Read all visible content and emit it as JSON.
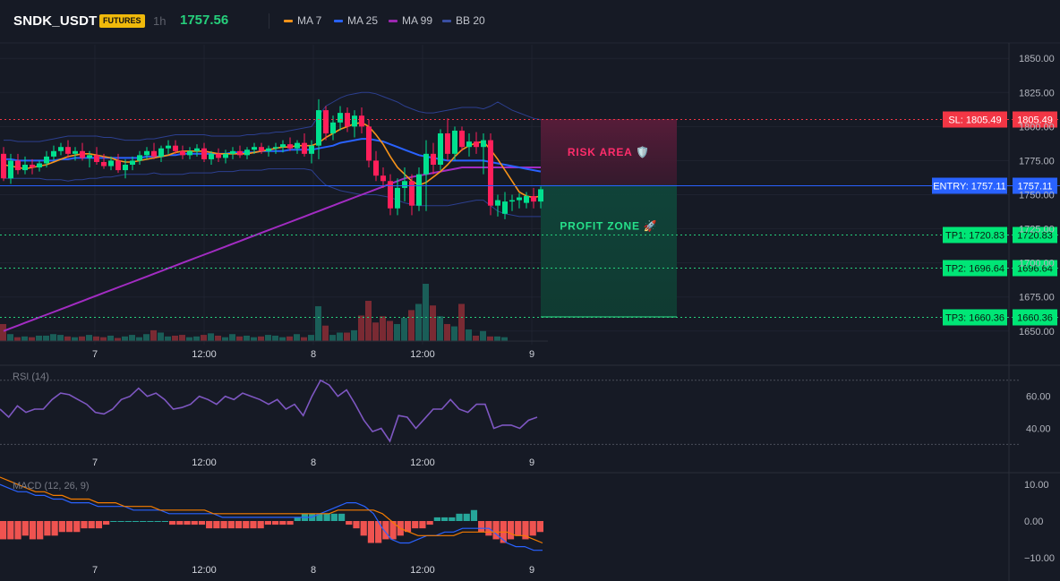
{
  "header": {
    "symbol": "SNDK_USDT",
    "badge": "FUTURES",
    "interval": "1h",
    "last_price": "1757.56",
    "legend": [
      {
        "label": "MA 7",
        "color": "#f7931a"
      },
      {
        "label": "MA 25",
        "color": "#2962ff"
      },
      {
        "label": "MA 99",
        "color": "#9c27b0"
      },
      {
        "label": "BB 20",
        "color": "#3a4fa3"
      }
    ]
  },
  "colors": {
    "up": "#26a69a",
    "down": "#ef5350",
    "bull_candle": "#00e08e",
    "bear_candle": "#ff1f5a",
    "vol_up": "#1a5e58",
    "vol_down": "#7a2a33"
  },
  "chart_data": [
    {
      "name": "price",
      "type": "candlestick",
      "y_ticks": [
        "1850.00",
        "1825.00",
        "1800.00",
        "1775.00",
        "1750.00",
        "1725.00",
        "1700.00",
        "1675.00",
        "1650.00"
      ],
      "x_ticks": [
        "7",
        "12:00",
        "8",
        "12:00",
        "9"
      ],
      "ylim": [
        1640,
        1860
      ],
      "candles": [
        {
          "o": 1780,
          "h": 1785,
          "l": 1760,
          "c": 1762
        },
        {
          "o": 1762,
          "h": 1780,
          "l": 1758,
          "c": 1775
        },
        {
          "o": 1775,
          "h": 1780,
          "l": 1765,
          "c": 1768
        },
        {
          "o": 1768,
          "h": 1778,
          "l": 1765,
          "c": 1772
        },
        {
          "o": 1772,
          "h": 1776,
          "l": 1765,
          "c": 1770
        },
        {
          "o": 1770,
          "h": 1775,
          "l": 1767,
          "c": 1773
        },
        {
          "o": 1773,
          "h": 1782,
          "l": 1770,
          "c": 1778
        },
        {
          "o": 1778,
          "h": 1786,
          "l": 1775,
          "c": 1782
        },
        {
          "o": 1782,
          "h": 1788,
          "l": 1779,
          "c": 1785
        },
        {
          "o": 1785,
          "h": 1790,
          "l": 1777,
          "c": 1780
        },
        {
          "o": 1780,
          "h": 1785,
          "l": 1775,
          "c": 1782
        },
        {
          "o": 1782,
          "h": 1788,
          "l": 1775,
          "c": 1777
        },
        {
          "o": 1777,
          "h": 1782,
          "l": 1770,
          "c": 1779
        },
        {
          "o": 1779,
          "h": 1785,
          "l": 1772,
          "c": 1774
        },
        {
          "o": 1774,
          "h": 1780,
          "l": 1769,
          "c": 1771
        },
        {
          "o": 1771,
          "h": 1778,
          "l": 1768,
          "c": 1775
        },
        {
          "o": 1775,
          "h": 1780,
          "l": 1766,
          "c": 1768
        },
        {
          "o": 1768,
          "h": 1776,
          "l": 1762,
          "c": 1772
        },
        {
          "o": 1772,
          "h": 1778,
          "l": 1768,
          "c": 1775
        },
        {
          "o": 1775,
          "h": 1782,
          "l": 1772,
          "c": 1779
        },
        {
          "o": 1779,
          "h": 1785,
          "l": 1776,
          "c": 1782
        },
        {
          "o": 1782,
          "h": 1788,
          "l": 1776,
          "c": 1778
        },
        {
          "o": 1778,
          "h": 1786,
          "l": 1774,
          "c": 1784
        },
        {
          "o": 1784,
          "h": 1790,
          "l": 1780,
          "c": 1786
        },
        {
          "o": 1786,
          "h": 1790,
          "l": 1780,
          "c": 1782
        },
        {
          "o": 1782,
          "h": 1786,
          "l": 1776,
          "c": 1779
        },
        {
          "o": 1779,
          "h": 1785,
          "l": 1776,
          "c": 1782
        },
        {
          "o": 1782,
          "h": 1787,
          "l": 1778,
          "c": 1784
        },
        {
          "o": 1784,
          "h": 1788,
          "l": 1774,
          "c": 1776
        },
        {
          "o": 1776,
          "h": 1782,
          "l": 1772,
          "c": 1780
        },
        {
          "o": 1780,
          "h": 1784,
          "l": 1774,
          "c": 1777
        },
        {
          "o": 1777,
          "h": 1783,
          "l": 1773,
          "c": 1780
        },
        {
          "o": 1780,
          "h": 1785,
          "l": 1776,
          "c": 1782
        },
        {
          "o": 1782,
          "h": 1786,
          "l": 1777,
          "c": 1779
        },
        {
          "o": 1779,
          "h": 1785,
          "l": 1776,
          "c": 1783
        },
        {
          "o": 1783,
          "h": 1788,
          "l": 1780,
          "c": 1785
        },
        {
          "o": 1785,
          "h": 1788,
          "l": 1780,
          "c": 1782
        },
        {
          "o": 1782,
          "h": 1786,
          "l": 1778,
          "c": 1784
        },
        {
          "o": 1784,
          "h": 1788,
          "l": 1780,
          "c": 1785
        },
        {
          "o": 1785,
          "h": 1790,
          "l": 1781,
          "c": 1787
        },
        {
          "o": 1787,
          "h": 1792,
          "l": 1782,
          "c": 1784
        },
        {
          "o": 1784,
          "h": 1790,
          "l": 1780,
          "c": 1788
        },
        {
          "o": 1788,
          "h": 1795,
          "l": 1778,
          "c": 1780
        },
        {
          "o": 1780,
          "h": 1790,
          "l": 1773,
          "c": 1786
        },
        {
          "o": 1786,
          "h": 1820,
          "l": 1776,
          "c": 1812
        },
        {
          "o": 1812,
          "h": 1815,
          "l": 1790,
          "c": 1795
        },
        {
          "o": 1795,
          "h": 1808,
          "l": 1790,
          "c": 1803
        },
        {
          "o": 1803,
          "h": 1815,
          "l": 1797,
          "c": 1810
        },
        {
          "o": 1810,
          "h": 1814,
          "l": 1796,
          "c": 1800
        },
        {
          "o": 1800,
          "h": 1812,
          "l": 1792,
          "c": 1808
        },
        {
          "o": 1808,
          "h": 1814,
          "l": 1795,
          "c": 1800
        },
        {
          "o": 1800,
          "h": 1805,
          "l": 1770,
          "c": 1775
        },
        {
          "o": 1775,
          "h": 1782,
          "l": 1760,
          "c": 1764
        },
        {
          "o": 1764,
          "h": 1770,
          "l": 1755,
          "c": 1760
        },
        {
          "o": 1760,
          "h": 1765,
          "l": 1735,
          "c": 1740
        },
        {
          "o": 1740,
          "h": 1762,
          "l": 1735,
          "c": 1755
        },
        {
          "o": 1755,
          "h": 1770,
          "l": 1745,
          "c": 1760
        },
        {
          "o": 1760,
          "h": 1765,
          "l": 1735,
          "c": 1742
        },
        {
          "o": 1742,
          "h": 1770,
          "l": 1738,
          "c": 1765
        },
        {
          "o": 1765,
          "h": 1790,
          "l": 1738,
          "c": 1780
        },
        {
          "o": 1780,
          "h": 1788,
          "l": 1765,
          "c": 1772
        },
        {
          "o": 1772,
          "h": 1798,
          "l": 1768,
          "c": 1795
        },
        {
          "o": 1795,
          "h": 1806,
          "l": 1775,
          "c": 1780
        },
        {
          "o": 1780,
          "h": 1800,
          "l": 1775,
          "c": 1797
        },
        {
          "o": 1797,
          "h": 1800,
          "l": 1782,
          "c": 1785
        },
        {
          "o": 1785,
          "h": 1795,
          "l": 1778,
          "c": 1789
        },
        {
          "o": 1789,
          "h": 1796,
          "l": 1780,
          "c": 1785
        },
        {
          "o": 1785,
          "h": 1795,
          "l": 1765,
          "c": 1790
        },
        {
          "o": 1790,
          "h": 1795,
          "l": 1735,
          "c": 1742
        },
        {
          "o": 1742,
          "h": 1750,
          "l": 1734,
          "c": 1746
        },
        {
          "o": 1736,
          "h": 1752,
          "l": 1732,
          "c": 1745
        },
        {
          "o": 1745,
          "h": 1750,
          "l": 1738,
          "c": 1746
        },
        {
          "o": 1746,
          "h": 1751,
          "l": 1740,
          "c": 1748
        },
        {
          "o": 1744,
          "h": 1752,
          "l": 1740,
          "c": 1749
        },
        {
          "o": 1749,
          "h": 1755,
          "l": 1740,
          "c": 1745
        },
        {
          "o": 1745,
          "h": 1756,
          "l": 1740,
          "c": 1754
        }
      ],
      "ma7": [
        1772,
        1771,
        1770,
        1769,
        1770,
        1771,
        1772,
        1774,
        1776,
        1778,
        1779,
        1780,
        1780,
        1779,
        1778,
        1777,
        1775,
        1774,
        1774,
        1775,
        1776,
        1777,
        1778,
        1779,
        1781,
        1782,
        1782,
        1782,
        1782,
        1781,
        1780,
        1780,
        1780,
        1780,
        1780,
        1781,
        1782,
        1783,
        1784,
        1785,
        1785,
        1786,
        1786,
        1786,
        1788,
        1792,
        1795,
        1798,
        1800,
        1802,
        1803,
        1800,
        1794,
        1787,
        1778,
        1770,
        1765,
        1760,
        1757,
        1759,
        1763,
        1767,
        1772,
        1778,
        1783,
        1786,
        1788,
        1789,
        1783,
        1776,
        1768,
        1760,
        1752,
        1749,
        1748,
        1749
      ],
      "ma25": [
        1776,
        1776,
        1775,
        1775,
        1775,
        1775,
        1775,
        1775,
        1776,
        1776,
        1777,
        1777,
        1777,
        1777,
        1777,
        1777,
        1777,
        1777,
        1777,
        1777,
        1778,
        1778,
        1778,
        1779,
        1779,
        1780,
        1780,
        1780,
        1780,
        1780,
        1780,
        1780,
        1781,
        1781,
        1781,
        1781,
        1782,
        1782,
        1782,
        1782,
        1783,
        1783,
        1783,
        1783,
        1784,
        1785,
        1786,
        1788,
        1789,
        1790,
        1791,
        1791,
        1790,
        1789,
        1787,
        1785,
        1783,
        1781,
        1779,
        1778,
        1777,
        1776,
        1775,
        1775,
        1775,
        1775,
        1775,
        1775,
        1774,
        1773,
        1772,
        1771,
        1770,
        1769,
        1768,
        1767
      ],
      "ma99": [
        1650,
        1652,
        1654,
        1656,
        1658,
        1660,
        1662,
        1664,
        1666,
        1668,
        1670,
        1672,
        1674,
        1676,
        1678,
        1680,
        1682,
        1684,
        1686,
        1688,
        1690,
        1692,
        1694,
        1696,
        1698,
        1700,
        1702,
        1704,
        1706,
        1708,
        1710,
        1712,
        1714,
        1716,
        1718,
        1720,
        1722,
        1724,
        1726,
        1728,
        1730,
        1732,
        1734,
        1736,
        1738,
        1740,
        1742,
        1744,
        1746,
        1748,
        1750,
        1752,
        1754,
        1756,
        1758,
        1760,
        1762,
        1763,
        1764,
        1765,
        1766,
        1767,
        1768,
        1769,
        1770,
        1770,
        1770,
        1770,
        1770,
        1770,
        1770,
        1770,
        1770,
        1770,
        1770,
        1770
      ],
      "bb_upper": [
        1790,
        1790,
        1789,
        1789,
        1789,
        1789,
        1790,
        1791,
        1792,
        1793,
        1793,
        1793,
        1793,
        1793,
        1792,
        1792,
        1791,
        1790,
        1790,
        1790,
        1791,
        1791,
        1792,
        1793,
        1794,
        1794,
        1794,
        1794,
        1794,
        1793,
        1793,
        1793,
        1793,
        1793,
        1794,
        1794,
        1795,
        1795,
        1796,
        1796,
        1797,
        1798,
        1799,
        1800,
        1808,
        1815,
        1818,
        1821,
        1823,
        1824,
        1825,
        1825,
        1824,
        1822,
        1820,
        1818,
        1815,
        1813,
        1811,
        1810,
        1810,
        1811,
        1812,
        1813,
        1814,
        1814,
        1814,
        1813,
        1815,
        1818,
        1815,
        1812,
        1810,
        1808,
        1806,
        1805
      ],
      "bb_lower": [
        1762,
        1762,
        1762,
        1762,
        1762,
        1762,
        1761,
        1761,
        1761,
        1760,
        1761,
        1761,
        1762,
        1762,
        1763,
        1763,
        1764,
        1765,
        1765,
        1765,
        1765,
        1766,
        1765,
        1765,
        1765,
        1765,
        1766,
        1766,
        1766,
        1766,
        1767,
        1767,
        1767,
        1768,
        1768,
        1768,
        1768,
        1769,
        1769,
        1769,
        1769,
        1769,
        1769,
        1768,
        1762,
        1757,
        1755,
        1753,
        1752,
        1751,
        1750,
        1750,
        1750,
        1749,
        1748,
        1746,
        1744,
        1743,
        1742,
        1742,
        1742,
        1742,
        1742,
        1743,
        1744,
        1745,
        1746,
        1746,
        1742,
        1738,
        1736,
        1735,
        1734,
        1734,
        1734,
        1734
      ],
      "volume": [
        22,
        9,
        5,
        6,
        5,
        7,
        7,
        9,
        8,
        6,
        5,
        6,
        8,
        6,
        5,
        7,
        4,
        6,
        8,
        5,
        9,
        14,
        11,
        6,
        7,
        8,
        5,
        6,
        8,
        10,
        7,
        5,
        9,
        6,
        7,
        5,
        6,
        8,
        7,
        5,
        6,
        9,
        5,
        8,
        45,
        20,
        8,
        11,
        11,
        14,
        33,
        52,
        24,
        32,
        26,
        22,
        30,
        40,
        48,
        74,
        46,
        32,
        22,
        19,
        48,
        15,
        7,
        13,
        6,
        6,
        5
      ],
      "trade": {
        "sl": 1805.49,
        "entry": 1757.11,
        "tp1": 1720.83,
        "tp2": 1696.64,
        "tp3": 1660.36,
        "sl_label": "SL: 1805.49",
        "entry_label": "ENTRY: 1757.11",
        "tp1_label": "TP1: 1720.83",
        "tp2_label": "TP2: 1696.64",
        "tp3_label": "TP3: 1660.36",
        "sl_price": "1805.49",
        "entry_price": "1757.11",
        "tp1_price": "1720.83",
        "tp2_price": "1696.64",
        "tp3_price": "1660.36",
        "risk_text": "RISK AREA 🛡️",
        "profit_text": "PROFIT ZONE 🚀"
      }
    },
    {
      "name": "rsi",
      "type": "line",
      "title": "RSI (14)",
      "y_ticks": [
        "60.00",
        "40.00"
      ],
      "ylim": [
        28,
        76
      ],
      "x_ticks": [
        "7",
        "12:00",
        "8",
        "12:00",
        "9"
      ],
      "values": [
        52,
        47,
        54,
        50,
        52,
        52,
        58,
        62,
        61,
        58,
        55,
        50,
        49,
        52,
        58,
        60,
        65,
        60,
        62,
        58,
        52,
        53,
        55,
        60,
        58,
        55,
        60,
        58,
        62,
        60,
        58,
        55,
        58,
        52,
        55,
        48,
        60,
        70,
        67,
        60,
        64,
        55,
        45,
        38,
        40,
        32,
        48,
        47,
        40,
        46,
        52,
        52,
        58,
        52,
        50,
        55,
        55,
        40,
        42,
        42,
        40,
        45,
        47
      ],
      "overbought": 70,
      "oversold": 30,
      "line_color": "#7e57c2"
    },
    {
      "name": "macd",
      "type": "bar",
      "title": "MACD (12, 26, 9)",
      "y_ticks": [
        "10.00",
        "0.00",
        "−10.00"
      ],
      "ylim": [
        -12,
        12
      ],
      "x_ticks": [
        "7",
        "12:00",
        "8",
        "12:00",
        "9"
      ],
      "histogram": [
        -5,
        -5,
        -5,
        -4,
        -5,
        -5,
        -4,
        -4,
        -3,
        -3,
        -3,
        -2,
        -2,
        -2,
        -1,
        0,
        0,
        0,
        0,
        0,
        0,
        0,
        0,
        -1,
        -1,
        -1,
        -1,
        -1,
        -2,
        -2,
        -2,
        -2,
        -2,
        -2,
        -2,
        -2,
        -1,
        -1,
        -1,
        -1,
        1,
        2,
        2,
        2,
        2,
        2,
        2,
        -1,
        -2,
        -4,
        -6,
        -6,
        -5,
        -5,
        -4,
        -3,
        -2,
        -2,
        -1,
        1,
        1,
        1,
        2,
        2,
        3,
        -3,
        -4,
        -5,
        -6,
        -5,
        -4,
        -5,
        -4,
        -3
      ],
      "macd_line": [
        10,
        9,
        8,
        8,
        7,
        7,
        6,
        6,
        5,
        5,
        5,
        4,
        4,
        4,
        4,
        3,
        3,
        3,
        3,
        2,
        2,
        2,
        2,
        2,
        2,
        1,
        1,
        1,
        1,
        1,
        1,
        1,
        1,
        1,
        1,
        1,
        2,
        3,
        4,
        5,
        5,
        4,
        2,
        -2,
        -5,
        -6,
        -6,
        -5,
        -4,
        -4,
        -3,
        -3,
        -2,
        -2,
        -2,
        -2,
        -4,
        -6,
        -7,
        -7,
        -8,
        -8
      ],
      "signal_line": [
        12,
        11,
        10,
        9,
        8,
        8,
        7,
        7,
        6,
        6,
        6,
        5,
        5,
        5,
        4,
        4,
        4,
        4,
        3,
        3,
        3,
        3,
        3,
        3,
        2,
        2,
        2,
        2,
        2,
        2,
        2,
        2,
        2,
        2,
        2,
        2,
        2,
        2,
        3,
        3,
        3,
        3,
        3,
        2,
        0,
        -2,
        -3,
        -4,
        -4,
        -4,
        -4,
        -4,
        -3,
        -3,
        -3,
        -3,
        -3,
        -3,
        -4,
        -4,
        -5,
        -6
      ],
      "macd_color": "#2962ff",
      "signal_color": "#f57c00"
    }
  ]
}
